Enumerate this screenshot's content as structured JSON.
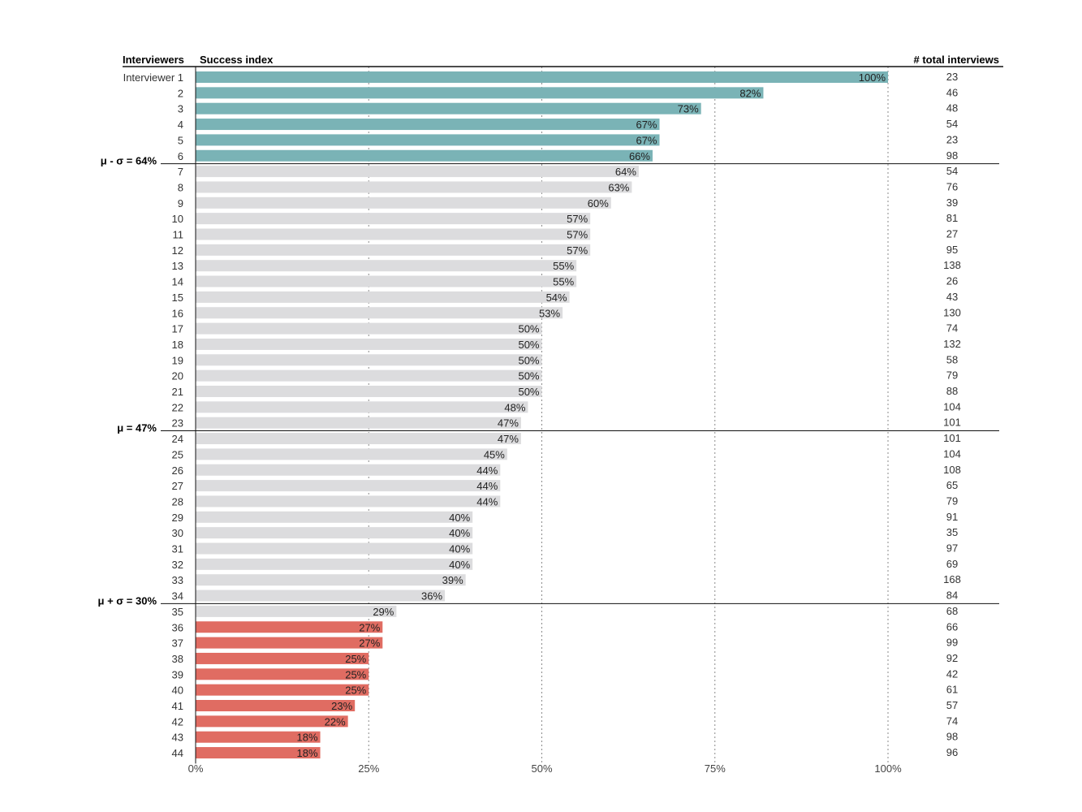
{
  "chart_data": {
    "type": "bar",
    "orientation": "horizontal",
    "headers": {
      "category": "Interviewers",
      "value": "Success index",
      "count": "# total interviews"
    },
    "categories": [
      "Interviewer 1",
      "2",
      "3",
      "4",
      "5",
      "6",
      "7",
      "8",
      "9",
      "10",
      "11",
      "12",
      "13",
      "14",
      "15",
      "16",
      "17",
      "18",
      "19",
      "20",
      "21",
      "22",
      "23",
      "24",
      "25",
      "26",
      "27",
      "28",
      "29",
      "30",
      "31",
      "32",
      "33",
      "34",
      "35",
      "36",
      "37",
      "38",
      "39",
      "40",
      "41",
      "42",
      "43",
      "44"
    ],
    "values": [
      100,
      82,
      73,
      67,
      67,
      66,
      64,
      63,
      60,
      57,
      57,
      57,
      55,
      55,
      54,
      53,
      50,
      50,
      50,
      50,
      50,
      48,
      47,
      47,
      45,
      44,
      44,
      44,
      40,
      40,
      40,
      40,
      39,
      36,
      29,
      27,
      27,
      25,
      25,
      25,
      23,
      22,
      18,
      18
    ],
    "value_labels": [
      "100%",
      "82%",
      "73%",
      "67%",
      "67%",
      "66%",
      "64%",
      "63%",
      "60%",
      "57%",
      "57%",
      "57%",
      "55%",
      "55%",
      "54%",
      "53%",
      "50%",
      "50%",
      "50%",
      "50%",
      "50%",
      "48%",
      "47%",
      "47%",
      "45%",
      "44%",
      "44%",
      "44%",
      "40%",
      "40%",
      "40%",
      "40%",
      "39%",
      "36%",
      "29%",
      "27%",
      "27%",
      "25%",
      "25%",
      "25%",
      "23%",
      "22%",
      "18%",
      "18%"
    ],
    "total_interviews": [
      23,
      46,
      48,
      54,
      23,
      98,
      54,
      76,
      39,
      81,
      27,
      95,
      138,
      26,
      43,
      130,
      74,
      132,
      58,
      79,
      88,
      104,
      101,
      101,
      104,
      108,
      65,
      79,
      91,
      35,
      97,
      69,
      168,
      84,
      68,
      66,
      99,
      92,
      42,
      61,
      57,
      74,
      98,
      96
    ],
    "groups": [
      "top",
      "top",
      "top",
      "top",
      "top",
      "top",
      "mid",
      "mid",
      "mid",
      "mid",
      "mid",
      "mid",
      "mid",
      "mid",
      "mid",
      "mid",
      "mid",
      "mid",
      "mid",
      "mid",
      "mid",
      "mid",
      "mid",
      "mid",
      "mid",
      "mid",
      "mid",
      "mid",
      "mid",
      "mid",
      "mid",
      "mid",
      "mid",
      "mid",
      "mid",
      "bottom",
      "bottom",
      "bottom",
      "bottom",
      "bottom",
      "bottom",
      "bottom",
      "bottom",
      "bottom"
    ],
    "colors": {
      "top": "#7ab3b6",
      "mid": "#dcdcde",
      "bottom": "#e06c62"
    },
    "xlim": [
      0,
      100
    ],
    "xticks": [
      0,
      25,
      50,
      75,
      100
    ],
    "xtick_labels": [
      "0%",
      "25%",
      "50%",
      "75%",
      "100%"
    ],
    "grid": "vertical dotted",
    "reference_lines": [
      {
        "label": "μ - σ = 64%",
        "after_row": 6
      },
      {
        "label": "μ = 47%",
        "after_row": 23
      },
      {
        "label": "μ + σ = 30%",
        "after_row": 34
      }
    ]
  }
}
